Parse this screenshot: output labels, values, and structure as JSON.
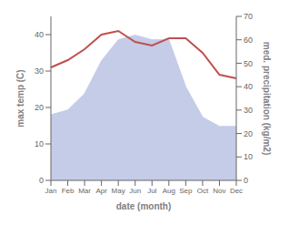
{
  "chart_data": {
    "type": "line",
    "xlabel": "date (month)",
    "ylabel": "max temp (C)",
    "y2label": "med. precipitation (kg/m2)",
    "categories": [
      "Jan",
      "Feb",
      "Mar",
      "Apr",
      "May",
      "Jun",
      "Jul",
      "Aug",
      "Sep",
      "Oct",
      "Nov",
      "Dec"
    ],
    "series": [
      {
        "type": "area",
        "axis": "y2",
        "color": "#c5cce8",
        "values": [
          28,
          30,
          37,
          51,
          60,
          62,
          60,
          60,
          40,
          27,
          23,
          23
        ]
      },
      {
        "type": "line",
        "color": "#c0504d",
        "values": [
          31,
          33,
          36,
          40,
          41,
          38,
          37,
          39,
          39,
          35,
          29,
          28
        ]
      }
    ],
    "ylim": [
      0,
      45
    ],
    "yticks": [
      0,
      10,
      20,
      30,
      40
    ],
    "y2lim": [
      0,
      70
    ],
    "y2ticks": [
      0,
      10,
      20,
      30,
      40,
      50,
      60,
      70
    ],
    "grid": false
  }
}
